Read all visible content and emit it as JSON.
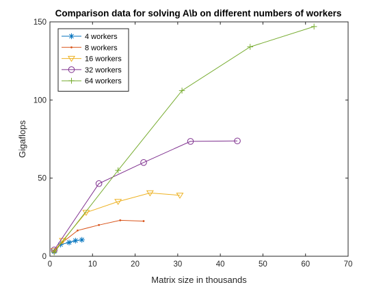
{
  "chart_data": {
    "type": "line",
    "title": "Comparison data for solving A\\b on different numbers of workers",
    "xlabel": "Matrix size in thousands",
    "ylabel": "Gigaflops",
    "xlim": [
      0,
      70
    ],
    "ylim": [
      0,
      150
    ],
    "xticks": [
      0,
      10,
      20,
      30,
      40,
      50,
      60,
      70
    ],
    "yticks": [
      0,
      50,
      100,
      150
    ],
    "grid": false,
    "legend_position": "top-left",
    "series": [
      {
        "name": "4 workers",
        "color": "#0072BD",
        "marker": "asterisk",
        "x": [
          1,
          2.5,
          4.5,
          6,
          7.5
        ],
        "y": [
          3,
          7.5,
          8.8,
          10,
          10.5
        ]
      },
      {
        "name": "8 workers",
        "color": "#D95319",
        "marker": "point",
        "x": [
          1,
          3,
          6.5,
          11.5,
          16.5,
          22
        ],
        "y": [
          3.5,
          9,
          16.5,
          20,
          23,
          22.5
        ]
      },
      {
        "name": "16 workers",
        "color": "#EDB120",
        "marker": "triangle-down",
        "x": [
          1,
          3,
          8.5,
          16,
          23.5,
          30.5
        ],
        "y": [
          3.5,
          10,
          28,
          35,
          40.5,
          39
        ]
      },
      {
        "name": "32 workers",
        "color": "#7E2F8E",
        "marker": "circle",
        "x": [
          1,
          11.5,
          22,
          33,
          44
        ],
        "y": [
          4,
          46.5,
          60,
          73.5,
          73.8
        ]
      },
      {
        "name": "64 workers",
        "color": "#77AC30",
        "marker": "plus",
        "x": [
          1,
          16,
          31,
          47,
          62
        ],
        "y": [
          2.5,
          55,
          106,
          134,
          147
        ]
      }
    ]
  }
}
